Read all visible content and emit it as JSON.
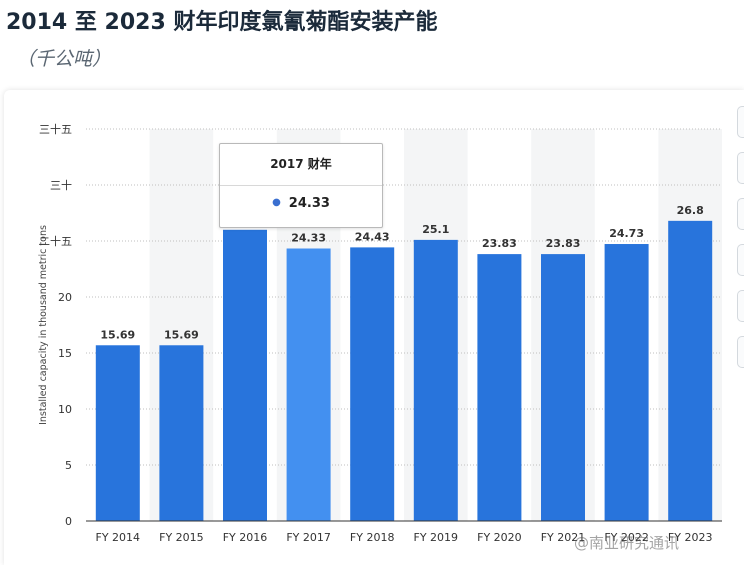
{
  "title": "2014 至 2023 财年印度氯氰菊酯安装产能",
  "subtitle": "（千公吨）",
  "tooltip": {
    "header": "2017 财年",
    "value": "24.33"
  },
  "watermark": "@南业研究通讯",
  "colors": {
    "bar": "#2874dc",
    "bar_highlight": "#4390f0",
    "band": "#f4f5f6",
    "grid": "#bfbfbf"
  },
  "chart_data": {
    "type": "bar",
    "categories": [
      "FY 2014",
      "FY 2015",
      "FY 2016",
      "FY 2017",
      "FY 2018",
      "FY 2019",
      "FY 2020",
      "FY 2021",
      "FY 2022",
      "FY 2023"
    ],
    "values": [
      15.69,
      15.69,
      26.0,
      24.33,
      24.43,
      25.1,
      23.83,
      23.83,
      24.73,
      26.8
    ],
    "value_labels": [
      "15.69",
      "15.69",
      "",
      "24.33",
      "24.43",
      "25.1",
      "23.83",
      "23.83",
      "24.73",
      "26.8"
    ],
    "highlighted_index": 3,
    "ylabel": "Installed capacity in thousand metric tons",
    "yticks": [
      0,
      5,
      10,
      15,
      20,
      25,
      30,
      35
    ],
    "ytick_labels": [
      "0",
      "5",
      "10",
      "15",
      "20",
      "二十五",
      "三十",
      "三十五"
    ],
    "ylim": [
      0,
      35
    ],
    "grid": true
  }
}
